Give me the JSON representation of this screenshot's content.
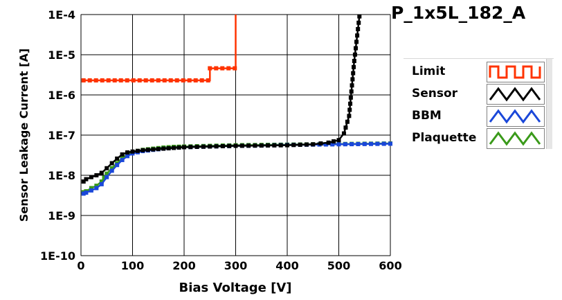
{
  "chart_data": {
    "type": "line",
    "title": "P_1x5L_182_A",
    "xlabel": "Bias Voltage [V]",
    "ylabel": "Sensor Leakage Current [A]",
    "xlim": [
      0,
      600
    ],
    "ylim": [
      1e-10,
      0.0001
    ],
    "yscale": "log",
    "grid": true,
    "legend_position": "right",
    "x_ticks": [
      "0",
      "100",
      "200",
      "300",
      "400",
      "500",
      "600"
    ],
    "y_ticks": [
      "1E-10",
      "1E-9",
      "1E-8",
      "1E-7",
      "1E-6",
      "1E-5",
      "1E-4"
    ],
    "series": [
      {
        "name": "Limit",
        "color": "#ff3300",
        "marker": "square",
        "x": [
          5,
          250,
          250,
          300,
          300
        ],
        "y": [
          2.3e-06,
          2.3e-06,
          4.6e-06,
          4.6e-06,
          0.0001
        ],
        "step": true
      },
      {
        "name": "Sensor",
        "color": "#000000",
        "marker": "square",
        "x": [
          5,
          10,
          20,
          30,
          40,
          50,
          60,
          70,
          80,
          90,
          100,
          120,
          140,
          160,
          180,
          200,
          250,
          300,
          350,
          400,
          450,
          480,
          500,
          510,
          520,
          530,
          540
        ],
        "y": [
          7e-09,
          8e-09,
          9e-09,
          1e-08,
          1.15e-08,
          1.5e-08,
          2e-08,
          2.6e-08,
          3.3e-08,
          3.7e-08,
          3.9e-08,
          4.2e-08,
          4.4e-08,
          4.6e-08,
          4.8e-08,
          5e-08,
          5.2e-08,
          5.4e-08,
          5.5e-08,
          5.6e-08,
          5.9e-08,
          6.5e-08,
          7.5e-08,
          1.1e-07,
          3e-07,
          7e-06,
          9e-05
        ]
      },
      {
        "name": "BBM",
        "color": "#1a47d9",
        "marker": "square",
        "x": [
          5,
          10,
          20,
          30,
          40,
          50,
          60,
          70,
          80,
          90,
          100,
          120,
          140,
          160,
          180,
          200,
          250,
          300,
          350,
          400,
          450,
          500,
          550,
          600
        ],
        "y": [
          3.5e-09,
          3.7e-09,
          4.2e-09,
          4.8e-09,
          6e-09,
          9e-09,
          1.3e-08,
          1.8e-08,
          2.4e-08,
          3e-08,
          3.5e-08,
          4e-08,
          4.3e-08,
          4.6e-08,
          4.8e-08,
          5e-08,
          5.2e-08,
          5.4e-08,
          5.5e-08,
          5.7e-08,
          5.8e-08,
          5.9e-08,
          6e-08,
          6.1e-08
        ]
      },
      {
        "name": "Plaquette",
        "color": "#3a9a1a",
        "marker": "square",
        "x": [
          5,
          10,
          20,
          30,
          40,
          50,
          60,
          70,
          80,
          90,
          100,
          120,
          140,
          160,
          180,
          200,
          250,
          300,
          350,
          400,
          450,
          500,
          550,
          600
        ],
        "y": [
          3.8e-09,
          4e-09,
          4.8e-09,
          5.5e-09,
          7e-09,
          1.1e-08,
          1.5e-08,
          2e-08,
          2.7e-08,
          3.3e-08,
          3.8e-08,
          4.3e-08,
          4.6e-08,
          4.9e-08,
          5.1e-08,
          5.2e-08,
          5.4e-08,
          5.6e-08,
          5.7e-08,
          5.8e-08,
          5.9e-08,
          6e-08,
          6.1e-08,
          6.2e-08
        ]
      }
    ]
  }
}
